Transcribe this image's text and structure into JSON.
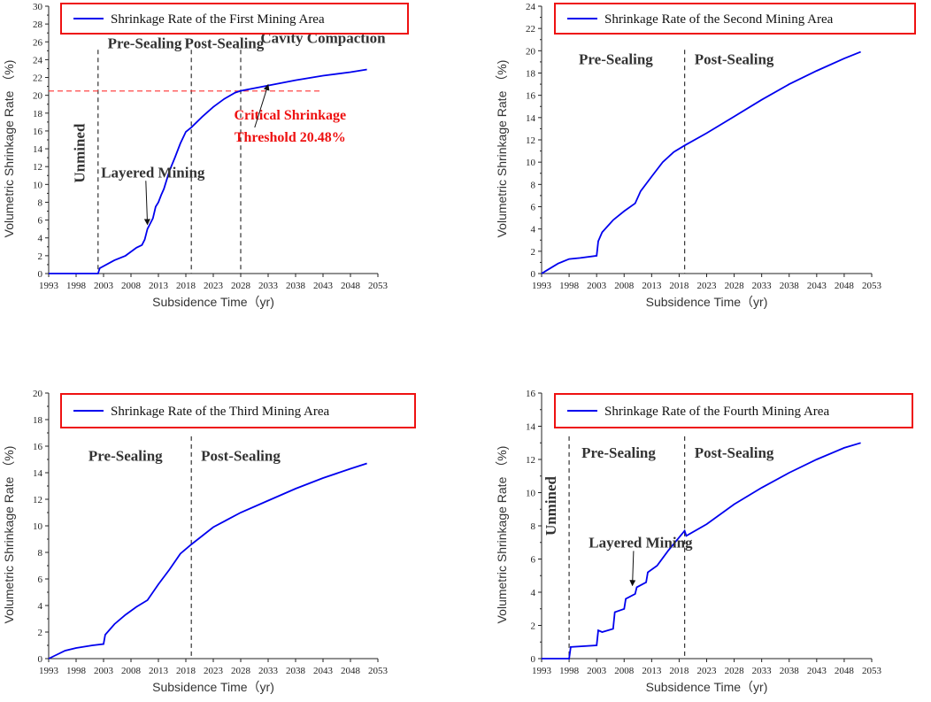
{
  "chart_data": [
    {
      "type": "line",
      "title": "",
      "xlabel": "Subsidence Time（yr)",
      "ylabel": "Volumetric Shrinkage Rate （%)",
      "xlim": [
        1993,
        2053
      ],
      "ylim": [
        0,
        30
      ],
      "xticks": [
        1993,
        1998,
        2003,
        2008,
        2013,
        2018,
        2023,
        2028,
        2033,
        2038,
        2043,
        2048,
        2053
      ],
      "yticks": [
        0,
        2,
        4,
        6,
        8,
        10,
        12,
        14,
        16,
        18,
        20,
        22,
        24,
        26,
        28,
        30
      ],
      "series": [
        {
          "name": "Shrinkage Rate of the First Mining Area",
          "color": "#0000ee",
          "x": [
            1993,
            2002,
            2002.3,
            2005,
            2007,
            2009,
            2010,
            2010.5,
            2011,
            2011.5,
            2012,
            2012.5,
            2013,
            2013.5,
            2014,
            2015,
            2016,
            2017,
            2018,
            2019,
            2021,
            2023,
            2025,
            2027,
            2028,
            2033,
            2038,
            2043,
            2048,
            2051
          ],
          "y": [
            0,
            0,
            0.6,
            1.5,
            2.0,
            2.9,
            3.2,
            3.8,
            5.0,
            5.6,
            6.2,
            7.5,
            8.0,
            8.8,
            9.5,
            11.5,
            13.0,
            14.6,
            15.9,
            16.4,
            17.6,
            18.7,
            19.6,
            20.3,
            20.5,
            21.1,
            21.7,
            22.2,
            22.6,
            22.9
          ]
        }
      ],
      "vlines": [
        2002,
        2019,
        2028
      ],
      "hline": 20.48,
      "hline_color": "#ff3333",
      "phase_labels": [
        {
          "text": "Pre-Sealing",
          "x": 2010.5,
          "y": 25.3
        },
        {
          "text": "Post-Sealing",
          "x": 2025,
          "y": 25.3
        },
        {
          "text": "Cavity Compaction",
          "x": 2043,
          "y": 25.9
        }
      ],
      "vertical_label": {
        "text": "Unmined",
        "x": 1999.5,
        "y": 13.5
      },
      "annotations": [
        {
          "text": "Layered Mining",
          "x": 2012,
          "y": 10.8,
          "arrow_to": [
            2011,
            5.5
          ]
        },
        {
          "text": "Critical  Shrinkage",
          "x": 2037,
          "y": 17.3,
          "color": "#ff0000"
        },
        {
          "text": "Threshold  20.48%",
          "x": 2037,
          "y": 14.8,
          "color": "#ff0000",
          "arrow_to": [
            2033,
            21.2
          ]
        }
      ]
    },
    {
      "type": "line",
      "title": "",
      "xlabel": "Subsidence Time（yr)",
      "ylabel": "Volumetric Shrinkage Rate （%)",
      "xlim": [
        1993,
        2053
      ],
      "ylim": [
        0,
        24
      ],
      "xticks": [
        1993,
        1998,
        2003,
        2008,
        2013,
        2018,
        2023,
        2028,
        2033,
        2038,
        2043,
        2048,
        2053
      ],
      "yticks": [
        0,
        2,
        4,
        6,
        8,
        10,
        12,
        14,
        16,
        18,
        20,
        22,
        24
      ],
      "series": [
        {
          "name": "Shrinkage Rate of the Second Mining Area",
          "color": "#0000ee",
          "x": [
            1993,
            1994,
            1996,
            1998,
            2000,
            2003,
            2003.3,
            2004,
            2006,
            2008,
            2010,
            2011,
            2013,
            2015,
            2017,
            2019,
            2023,
            2028,
            2033,
            2038,
            2043,
            2048,
            2051
          ],
          "y": [
            0,
            0.3,
            0.9,
            1.3,
            1.4,
            1.6,
            2.9,
            3.7,
            4.8,
            5.6,
            6.3,
            7.4,
            8.7,
            10.0,
            10.9,
            11.5,
            12.6,
            14.1,
            15.6,
            17.0,
            18.2,
            19.3,
            19.9
          ]
        }
      ],
      "vlines": [
        2019
      ],
      "phase_labels": [
        {
          "text": "Pre-Sealing",
          "x": 2006.5,
          "y": 18.8
        },
        {
          "text": "Post-Sealing",
          "x": 2028,
          "y": 18.8
        }
      ]
    },
    {
      "type": "line",
      "title": "",
      "xlabel": "Subsidence Time（yr)",
      "ylabel": "Volumetric Shrinkage Rate （%)",
      "xlim": [
        1993,
        2053
      ],
      "ylim": [
        0,
        20
      ],
      "xticks": [
        1993,
        1998,
        2003,
        2008,
        2013,
        2018,
        2023,
        2028,
        2033,
        2038,
        2043,
        2048,
        2053
      ],
      "yticks": [
        0,
        2,
        4,
        6,
        8,
        10,
        12,
        14,
        16,
        18,
        20
      ],
      "series": [
        {
          "name": "Shrinkage Rate of the Third Mining Area",
          "color": "#0000ee",
          "x": [
            1993,
            1994,
            1996,
            1998,
            2001,
            2003,
            2003.3,
            2005,
            2007,
            2009,
            2011,
            2013,
            2015,
            2017,
            2019,
            2023,
            2028,
            2033,
            2038,
            2043,
            2048,
            2051
          ],
          "y": [
            0,
            0.2,
            0.6,
            0.8,
            1.0,
            1.1,
            1.8,
            2.6,
            3.3,
            3.9,
            4.4,
            5.6,
            6.7,
            7.9,
            8.6,
            9.9,
            11.0,
            11.9,
            12.8,
            13.6,
            14.3,
            14.7
          ]
        }
      ],
      "vlines": [
        2019
      ],
      "phase_labels": [
        {
          "text": "Pre-Sealing",
          "x": 2007,
          "y": 14.9
        },
        {
          "text": "Post-Sealing",
          "x": 2028,
          "y": 14.9
        }
      ]
    },
    {
      "type": "line",
      "title": "",
      "xlabel": "Subsidence Time（yr)",
      "ylabel": "Volumetric Shrinkage Rate （%)",
      "xlim": [
        1993,
        2053
      ],
      "ylim": [
        0,
        16
      ],
      "xticks": [
        1993,
        1998,
        2003,
        2008,
        2013,
        2018,
        2023,
        2028,
        2033,
        2038,
        2043,
        2048,
        2053
      ],
      "yticks": [
        0,
        2,
        4,
        6,
        8,
        10,
        12,
        14,
        16
      ],
      "series": [
        {
          "name": "Shrinkage Rate of the Fourth Mining Area",
          "color": "#0000ee",
          "x": [
            1993,
            1998,
            1998.3,
            2003,
            2003.3,
            2004,
            2006,
            2006.3,
            2008,
            2008.3,
            2010,
            2010.3,
            2012,
            2012.3,
            2014,
            2016,
            2018,
            2019,
            2019.3,
            2023,
            2028,
            2033,
            2038,
            2043,
            2048,
            2051
          ],
          "y": [
            0,
            0,
            0.7,
            0.8,
            1.7,
            1.6,
            1.8,
            2.8,
            3.0,
            3.6,
            3.9,
            4.3,
            4.6,
            5.2,
            5.6,
            6.5,
            7.3,
            7.7,
            7.4,
            8.1,
            9.3,
            10.3,
            11.2,
            12.0,
            12.7,
            13.0
          ]
        }
      ],
      "vlines": [
        1998,
        2019
      ],
      "phase_labels": [
        {
          "text": "Pre-Sealing",
          "x": 2007,
          "y": 12.1
        },
        {
          "text": "Post-Sealing",
          "x": 2028,
          "y": 12.1
        }
      ],
      "vertical_label": {
        "text": "Unmined",
        "x": 1995.6,
        "y": 9.2
      },
      "annotations": [
        {
          "text": "Layered Mining",
          "x": 2011,
          "y": 6.7,
          "arrow_to": [
            2009.5,
            4.4
          ]
        }
      ]
    }
  ]
}
